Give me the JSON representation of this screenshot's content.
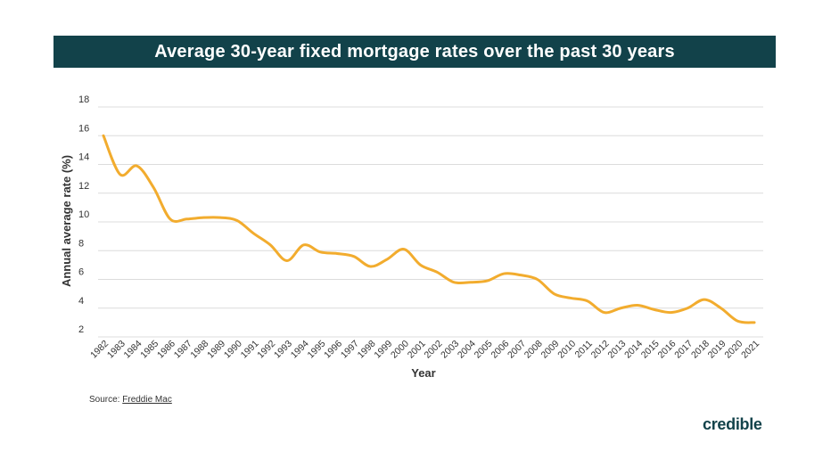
{
  "chart_data": {
    "type": "line",
    "title": "Average 30-year fixed mortgage rates over the past 30 years",
    "xlabel": "Year",
    "ylabel": "Annual average rate (%)",
    "ylim": [
      2,
      18
    ],
    "yticks": [
      "2",
      "4",
      "6",
      "8",
      "10",
      "12",
      "14",
      "16",
      "18"
    ],
    "grid": true,
    "x": [
      "1982",
      "1983",
      "1984",
      "1985",
      "1986",
      "1987",
      "1988",
      "1989",
      "1990",
      "1991",
      "1992",
      "1993",
      "1994",
      "1995",
      "1996",
      "1997",
      "1998",
      "1999",
      "2000",
      "2001",
      "2002",
      "2003",
      "2004",
      "2005",
      "2006",
      "2007",
      "2008",
      "2009",
      "2010",
      "2011",
      "2012",
      "2013",
      "2014",
      "2015",
      "2016",
      "2017",
      "2018",
      "2019",
      "2020",
      "2021"
    ],
    "series": [
      {
        "color": "#f2ac2e",
        "values": [
          16.0,
          13.3,
          13.9,
          12.4,
          10.2,
          10.2,
          10.3,
          10.3,
          10.1,
          9.2,
          8.4,
          7.3,
          8.4,
          7.9,
          7.8,
          7.6,
          6.9,
          7.4,
          8.1,
          7.0,
          6.5,
          5.8,
          5.8,
          5.9,
          6.4,
          6.3,
          6.0,
          5.0,
          4.7,
          4.5,
          3.7,
          4.0,
          4.2,
          3.9,
          3.7,
          4.0,
          4.6,
          4.0,
          3.1,
          3.0
        ]
      }
    ]
  },
  "source": {
    "prefix": "Source: ",
    "link": "Freddie Mac"
  },
  "logo": "credible"
}
